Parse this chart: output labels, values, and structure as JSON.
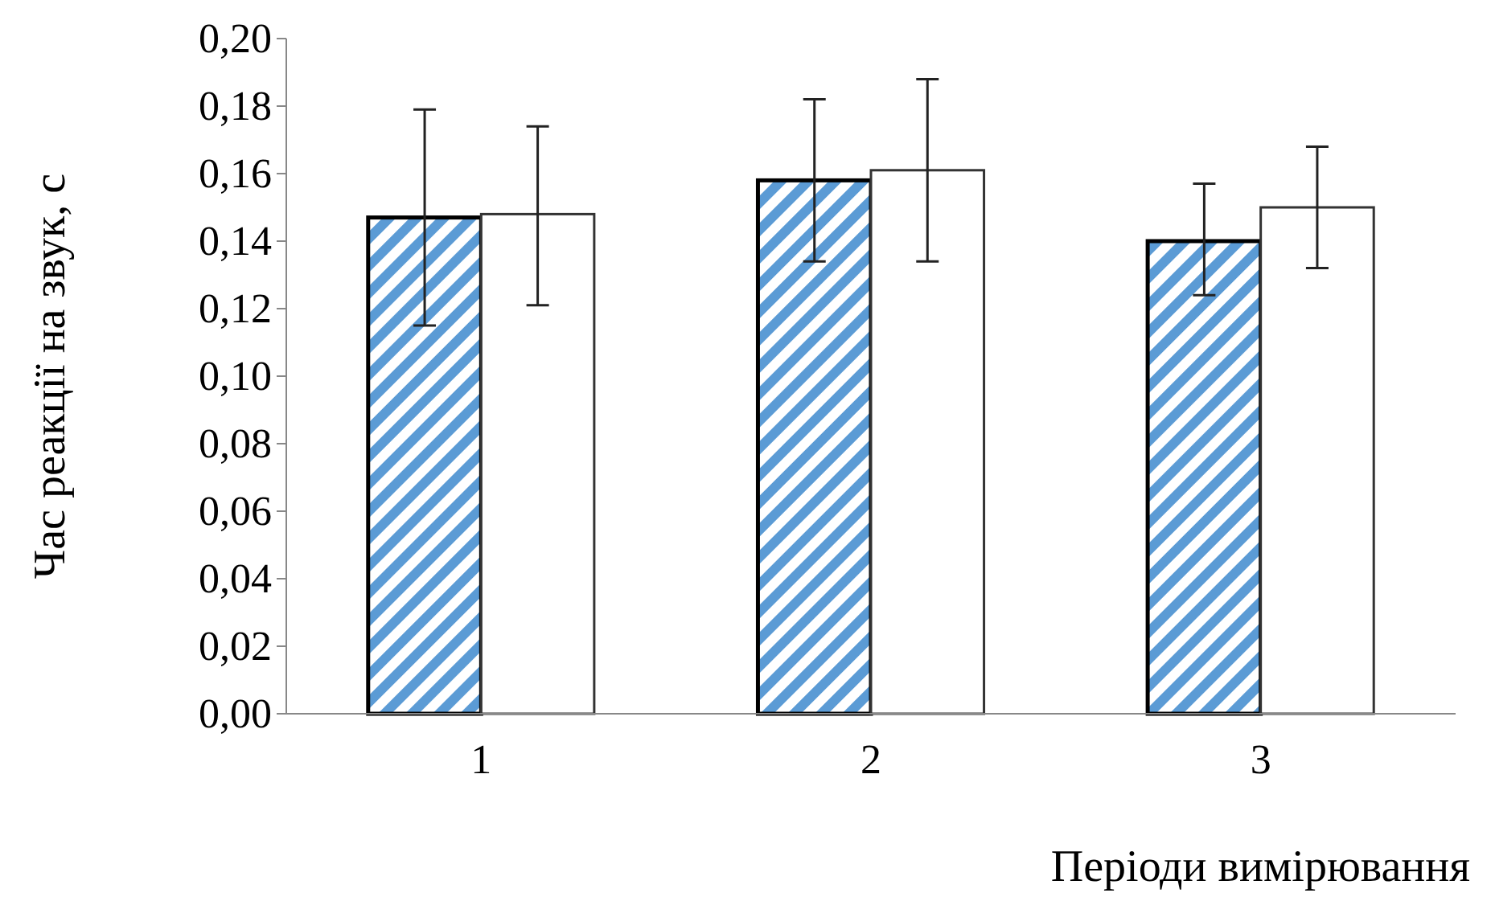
{
  "chart_data": {
    "type": "bar",
    "xlabel": "Періоди вимірювання",
    "ylabel": "Час реакції на звук, с",
    "categories": [
      "1",
      "2",
      "3"
    ],
    "series": [
      {
        "color": "#5b9bd5",
        "values": [
          0.147,
          0.158,
          0.14
        ],
        "errors": [
          [
            0.115,
            0.179
          ],
          [
            0.134,
            0.182
          ],
          [
            0.124,
            0.157
          ]
        ]
      },
      {
        "color": "#ffffff",
        "values": [
          0.148,
          0.161,
          0.15
        ],
        "errors": [
          [
            0.121,
            0.174
          ],
          [
            0.134,
            0.188
          ],
          [
            0.132,
            0.168
          ]
        ]
      }
    ],
    "ylim": [
      0,
      0.2
    ],
    "yticks": [
      {
        "value": 0,
        "label": "0,00"
      },
      {
        "value": 0.02,
        "label": "0,02"
      },
      {
        "value": 0.04,
        "label": "0,04"
      },
      {
        "value": 0.06,
        "label": "0,06"
      },
      {
        "value": 0.08,
        "label": "0,08"
      },
      {
        "value": 0.1,
        "label": "0,10"
      },
      {
        "value": 0.12,
        "label": "0,12"
      },
      {
        "value": 0.14,
        "label": "0,14"
      },
      {
        "value": 0.16,
        "label": "0,16"
      },
      {
        "value": 0.18,
        "label": "0,18"
      },
      {
        "value": 0.2,
        "label": "0,20"
      }
    ],
    "grid": false
  }
}
